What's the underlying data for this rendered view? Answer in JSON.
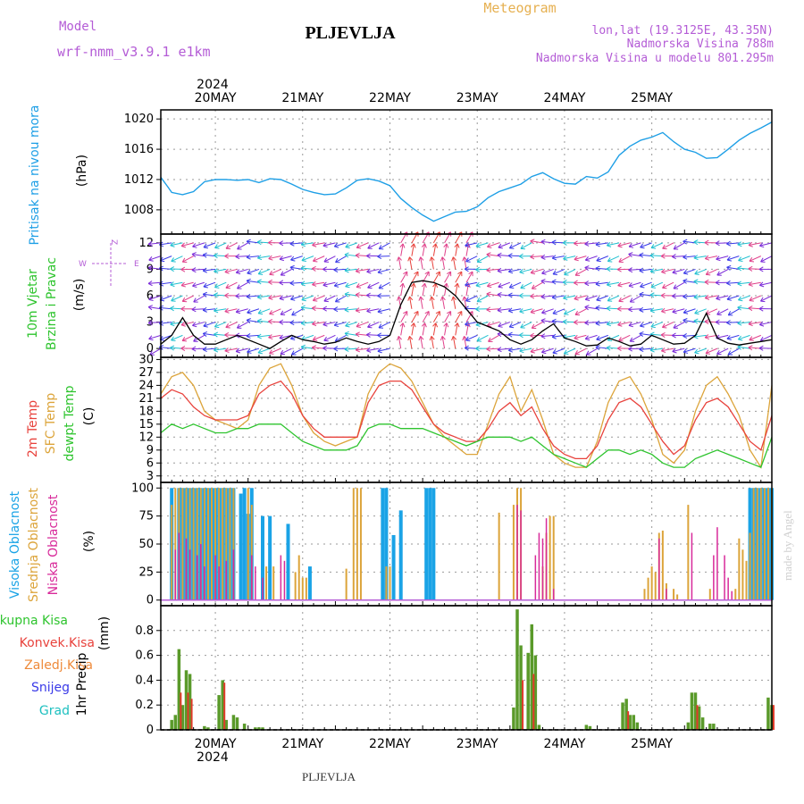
{
  "header": {
    "model_label": "Model",
    "model_name": "wrf-nmm_v3.9.1 e1km",
    "station": "PLJEVLJA",
    "title": "Meteogram",
    "lonlat": "lon,lat (19.3125E, 43.35N)",
    "elevation": "Nadmorska Visina 788m",
    "model_elevation": "Nadmorska Visina u modelu 801.295m",
    "footer": "PLJEVLJA",
    "credit": "made by Angel"
  },
  "colors": {
    "pressure": "#1e9fe6",
    "temp2m": "#e8423c",
    "sfc_temp": "#dca43a",
    "dewpt": "#2ec42e",
    "cloud_high": "#1aa3e6",
    "cloud_mid": "#dca43a",
    "cloud_low": "#d82a9a",
    "precip_total": "#5a9a2a",
    "precip_conv": "#e03a2a",
    "header_purple": "#b45cd6",
    "title_orange": "#e6b050"
  },
  "timeline": {
    "days": [
      "20MAY",
      "21MAY",
      "22MAY",
      "23MAY",
      "24MAY",
      "25MAY"
    ],
    "year": "2024"
  },
  "chart_data": [
    {
      "type": "line",
      "panel": "pressure",
      "ylabel_main": "Pritisak na nivou mora",
      "ylabel_unit": "(hPa)",
      "ylim": [
        1004.8,
        1021.2
      ],
      "yticks": [
        "1008",
        "1012",
        "1016",
        "1020"
      ],
      "grid": true,
      "x_hours": [
        0,
        2,
        3,
        6,
        9,
        12,
        15,
        18,
        21,
        24,
        27,
        30,
        33,
        36,
        39,
        42,
        45,
        48,
        51,
        54,
        57,
        60,
        63,
        66,
        69,
        72,
        75,
        78,
        81,
        84,
        87,
        90,
        93,
        96,
        99,
        102,
        105,
        108,
        111,
        114,
        117,
        120,
        123,
        126,
        129,
        132,
        135,
        138,
        141,
        144,
        147,
        150,
        153,
        156,
        159,
        162,
        165,
        168
      ],
      "values": [
        1012.3,
        1011.0,
        1010.3,
        1010.0,
        1010.4,
        1011.7,
        1012.0,
        1012.0,
        1011.9,
        1012.0,
        1011.6,
        1012.1,
        1012.0,
        1011.4,
        1010.7,
        1010.3,
        1010.0,
        1010.1,
        1010.9,
        1011.9,
        1012.1,
        1011.8,
        1011.2,
        1009.5,
        1008.3,
        1007.3,
        1006.5,
        1007.1,
        1007.7,
        1007.8,
        1008.4,
        1009.6,
        1010.4,
        1010.9,
        1011.4,
        1012.4,
        1012.9,
        1012.1,
        1011.5,
        1011.4,
        1012.4,
        1012.2,
        1013.0,
        1015.2,
        1016.4,
        1017.2,
        1017.6,
        1018.2,
        1017.0,
        1016.0,
        1015.6,
        1014.8,
        1014.9,
        1016.0,
        1017.2,
        1018.1,
        1018.8,
        1019.6
      ]
    },
    {
      "type": "line",
      "panel": "wind",
      "ylabel_main": "10m Vjetar",
      "ylabel_sub": "Brzina i Pravac",
      "ylabel_unit": "(m/s)",
      "compass": [
        "W",
        "E",
        "Z"
      ],
      "ylim": [
        -1,
        13
      ],
      "yticks": [
        "0",
        "3",
        "6",
        "9",
        "12"
      ],
      "grid": true,
      "x_hours": [
        0,
        3,
        6,
        9,
        12,
        15,
        18,
        21,
        24,
        27,
        30,
        33,
        36,
        39,
        42,
        45,
        48,
        51,
        54,
        57,
        60,
        63,
        66,
        69,
        72,
        75,
        78,
        81,
        84,
        87,
        90,
        93,
        96,
        99,
        102,
        105,
        108,
        111,
        114,
        117,
        120,
        123,
        126,
        129,
        132,
        135,
        138,
        141,
        144,
        147,
        150,
        153,
        156,
        159,
        162,
        165,
        168
      ],
      "values": [
        0.5,
        1.5,
        3.5,
        1.5,
        0.5,
        0.5,
        1.0,
        1.5,
        1.0,
        0.5,
        0.0,
        0.8,
        1.5,
        1.0,
        0.8,
        0.5,
        0.7,
        1.2,
        0.8,
        0.5,
        0.8,
        1.5,
        5.0,
        7.5,
        7.7,
        7.5,
        7.0,
        6.0,
        4.5,
        3.0,
        2.5,
        2.0,
        1.0,
        0.5,
        1.0,
        2.0,
        2.8,
        1.2,
        0.8,
        0.3,
        0.4,
        1.2,
        0.8,
        0.3,
        0.5,
        1.5,
        1.0,
        0.5,
        0.6,
        1.5,
        4.0,
        1.2,
        0.6,
        0.4,
        0.6,
        0.8,
        1.0
      ]
    },
    {
      "type": "line",
      "panel": "temperature",
      "ylabel_main": "2m Temp",
      "ylabel_sub": "SFC Temp",
      "ylabel_sub2": "dewpt Temp",
      "ylabel_unit": "(C)",
      "ylim": [
        1.5,
        30.5
      ],
      "yticks": [
        "3",
        "6",
        "9",
        "12",
        "15",
        "18",
        "21",
        "24",
        "27",
        "30"
      ],
      "grid": true,
      "x_hours": [
        0,
        3,
        6,
        9,
        12,
        15,
        18,
        21,
        24,
        27,
        30,
        33,
        36,
        39,
        42,
        45,
        48,
        51,
        54,
        57,
        60,
        63,
        66,
        69,
        72,
        75,
        78,
        81,
        84,
        87,
        90,
        93,
        96,
        99,
        102,
        105,
        108,
        111,
        114,
        117,
        120,
        123,
        126,
        129,
        132,
        135,
        138,
        141,
        144,
        147,
        150,
        153,
        156,
        159,
        162,
        165,
        168
      ],
      "series": [
        {
          "name": "2m Temp",
          "values": [
            21,
            23,
            22,
            19,
            17,
            16,
            16,
            16,
            17,
            22,
            24,
            25,
            22,
            17,
            14,
            12,
            12,
            12,
            12,
            20,
            24,
            25,
            25,
            23,
            19,
            15,
            13,
            12,
            11,
            11,
            14,
            18,
            20,
            17,
            19,
            14,
            10,
            8,
            7,
            7,
            10,
            16,
            20,
            21,
            19,
            15,
            11,
            8,
            10,
            16,
            20,
            21,
            19,
            15,
            11,
            9,
            17
          ]
        },
        {
          "name": "SFC Temp",
          "values": [
            22,
            26,
            27,
            24,
            18,
            16,
            15,
            14,
            16,
            24,
            28,
            29,
            24,
            17,
            13,
            11,
            10,
            11,
            12,
            22,
            27,
            29,
            28,
            25,
            20,
            15,
            12,
            10,
            8,
            8,
            15,
            22,
            26,
            18,
            23,
            16,
            8,
            6,
            5,
            5,
            11,
            20,
            25,
            26,
            22,
            16,
            8,
            6,
            9,
            18,
            24,
            26,
            22,
            17,
            9,
            5,
            24
          ]
        },
        {
          "name": "dewpt Temp",
          "values": [
            13,
            15,
            14,
            15,
            14,
            13,
            13,
            14,
            14,
            15,
            15,
            15,
            13,
            11,
            10,
            9,
            9,
            9,
            10,
            14,
            15,
            15,
            14,
            14,
            14,
            13,
            12,
            11,
            10,
            11,
            12,
            12,
            12,
            11,
            12,
            10,
            8,
            7,
            6,
            5,
            7,
            9,
            9,
            8,
            9,
            8,
            6,
            5,
            5,
            7,
            8,
            9,
            8,
            7,
            6,
            5,
            12
          ]
        }
      ]
    },
    {
      "type": "bar",
      "panel": "cloud",
      "ylabel_main": "Visoka Oblacnost",
      "ylabel_sub": "Srednja Oblacnost",
      "ylabel_sub2": "Niska Oblacnost",
      "ylabel_unit": "(%)",
      "ylim": [
        -5,
        105
      ],
      "yticks": [
        "0",
        "25",
        "50",
        "75",
        "100"
      ],
      "grid": true,
      "series": [
        {
          "name": "Visoka Oblacnost",
          "hours": [
            3,
            5,
            6,
            7,
            8,
            9,
            10,
            11,
            12,
            13,
            14,
            15,
            16,
            17,
            18,
            19,
            20,
            22,
            23,
            24,
            25,
            28,
            30,
            35,
            41,
            61,
            62,
            64,
            66,
            73,
            74,
            75,
            162,
            163,
            164,
            165,
            166,
            167,
            168
          ],
          "values": [
            100,
            100,
            100,
            100,
            100,
            100,
            100,
            100,
            100,
            100,
            100,
            100,
            100,
            100,
            100,
            100,
            100,
            95,
            100,
            77,
            100,
            75,
            75,
            68,
            30,
            100,
            100,
            58,
            80,
            100,
            100,
            100,
            100,
            100,
            100,
            100,
            100,
            100,
            100
          ]
        },
        {
          "name": "Srednja Oblacnost",
          "hours": [
            3,
            4,
            5,
            6,
            7,
            8,
            9,
            10,
            11,
            12,
            13,
            14,
            15,
            16,
            17,
            18,
            19,
            20,
            24,
            25,
            29,
            31,
            37,
            38,
            39,
            40,
            51,
            53,
            54,
            55,
            62,
            63,
            93,
            97,
            98,
            99,
            105,
            106,
            107,
            108,
            133,
            134,
            135,
            136,
            137,
            138,
            139,
            141,
            142,
            145,
            151,
            158,
            159,
            160,
            161,
            162,
            163,
            164,
            165,
            166,
            167,
            168
          ],
          "values": [
            85,
            100,
            100,
            100,
            100,
            100,
            100,
            100,
            100,
            100,
            100,
            100,
            100,
            100,
            100,
            100,
            100,
            100,
            100,
            85,
            30,
            30,
            25,
            40,
            20,
            20,
            28,
            100,
            100,
            100,
            30,
            30,
            78,
            85,
            100,
            100,
            30,
            60,
            75,
            75,
            10,
            20,
            30,
            25,
            60,
            62,
            15,
            10,
            5,
            85,
            10,
            10,
            55,
            45,
            35,
            60,
            100,
            100,
            100,
            100,
            100,
            100
          ]
        },
        {
          "name": "Niska Oblacnost",
          "hours": [
            4,
            5,
            7,
            8,
            10,
            11,
            12,
            15,
            16,
            18,
            20,
            25,
            26,
            28,
            33,
            34,
            98,
            99,
            103,
            104,
            105,
            106,
            108,
            137,
            139,
            146,
            152,
            153,
            155,
            156,
            157
          ],
          "values": [
            45,
            60,
            55,
            45,
            40,
            50,
            30,
            40,
            30,
            35,
            45,
            40,
            30,
            20,
            40,
            35,
            85,
            80,
            40,
            60,
            55,
            73,
            10,
            55,
            10,
            60,
            40,
            65,
            40,
            20,
            8
          ]
        }
      ]
    },
    {
      "type": "bar",
      "panel": "precip",
      "ylabel_main": "1hr Precip",
      "ylabel_unit": "(mm)",
      "legend": [
        "Ukupna Kisa",
        "Konvek.Kisa",
        "Zaledj.Kisa",
        "Snijeg",
        "Grad"
      ],
      "ylim": [
        0,
        1.0
      ],
      "yticks": [
        "0",
        "0.2",
        "0.4",
        "0.6",
        "0.8"
      ],
      "grid": true,
      "series": [
        {
          "name": "Ukupna Kisa",
          "hours": [
            3,
            4,
            5,
            6,
            7,
            8,
            12,
            13,
            16,
            17,
            18,
            20,
            21,
            23,
            26,
            27,
            28,
            97,
            98,
            99,
            101,
            102,
            103,
            104,
            117,
            118,
            127,
            128,
            129,
            130,
            131,
            145,
            146,
            147,
            148,
            149,
            151,
            152,
            167,
            168
          ],
          "values": [
            0.08,
            0.12,
            0.65,
            0.2,
            0.48,
            0.45,
            0.03,
            0.02,
            0.28,
            0.4,
            0.08,
            0.12,
            0.1,
            0.05,
            0.02,
            0.02,
            0.02,
            0.18,
            0.97,
            0.68,
            0.62,
            0.85,
            0.6,
            0.04,
            0.04,
            0.03,
            0.22,
            0.25,
            0.12,
            0.12,
            0.06,
            0.06,
            0.3,
            0.3,
            0.19,
            0.1,
            0.05,
            0.05,
            0.26,
            0.2
          ]
        },
        {
          "name": "Konvek.Kisa",
          "hours": [
            5,
            7,
            8,
            17,
            99,
            102,
            128,
            147,
            168
          ],
          "values": [
            0.3,
            0.3,
            0.25,
            0.38,
            0.4,
            0.45,
            0.15,
            0.2,
            0.2
          ]
        }
      ]
    }
  ]
}
